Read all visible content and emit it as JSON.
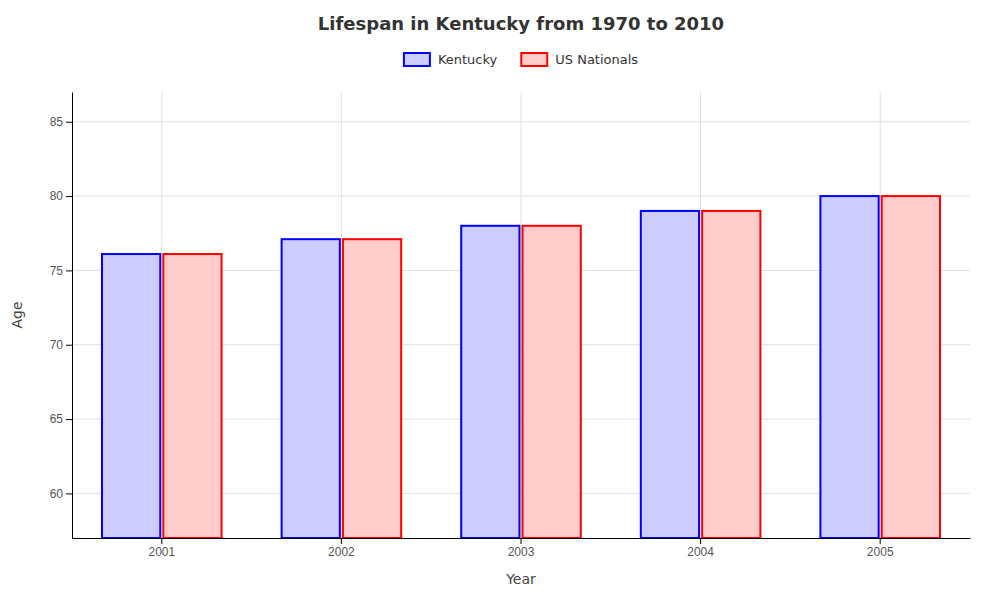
{
  "chart_data": {
    "type": "bar",
    "title": "Lifespan in Kentucky from 1970 to 2010",
    "x_label": "Year",
    "y_label": "Age",
    "categories": [
      "2001",
      "2002",
      "2003",
      "2004",
      "2005"
    ],
    "series": [
      {
        "name": "Kentucky",
        "color": "#0000ff",
        "values": [
          76.1,
          77.1,
          78.0,
          79.0,
          80.0
        ]
      },
      {
        "name": "US Nationals",
        "color": "#ff0000",
        "values": [
          76.1,
          77.1,
          78.0,
          79.0,
          80.0
        ]
      }
    ],
    "ylim": [
      57,
      87
    ],
    "yticks": [
      60,
      65,
      70,
      75,
      80,
      85
    ],
    "grid": true,
    "legend": "top"
  }
}
